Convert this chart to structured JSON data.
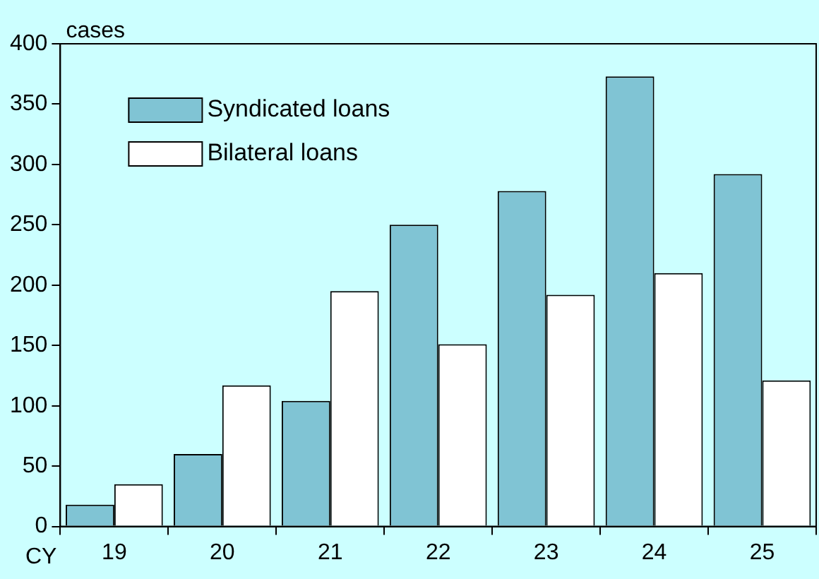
{
  "chart_data": {
    "type": "bar",
    "ylabel": "cases",
    "xlabel": "CY",
    "categories": [
      "19",
      "20",
      "21",
      "22",
      "23",
      "24",
      "25"
    ],
    "series": [
      {
        "name": "Syndicated loans",
        "color": "#80c4d4",
        "values": [
          18,
          60,
          104,
          250,
          278,
          373,
          292
        ]
      },
      {
        "name": "Bilateral loans",
        "color": "#ffffff",
        "values": [
          35,
          117,
          195,
          151,
          192,
          210,
          121
        ]
      }
    ],
    "ylim": [
      0,
      400
    ],
    "yticks": [
      0,
      50,
      100,
      150,
      200,
      250,
      300,
      350,
      400
    ],
    "grid": false,
    "legend": "top left"
  }
}
